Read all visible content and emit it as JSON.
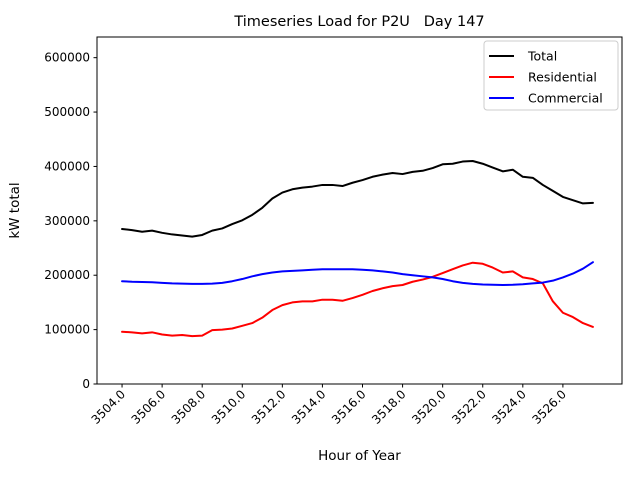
{
  "window": {
    "background_color": "#ffffff"
  },
  "chart_data": {
    "type": "line",
    "title": "Timeseries Load for P2U   Day 147",
    "xlabel": "Hour of Year",
    "ylabel": "kW total",
    "xlim": [
      3502.75,
      3528.95
    ],
    "ylim": [
      0,
      638000
    ],
    "grid": false,
    "legend_position": "upper right",
    "legend_border_color": "#cccccc",
    "axis_color": "#000000",
    "xticks": [
      3504,
      3506,
      3508,
      3510,
      3512,
      3514,
      3516,
      3518,
      3520,
      3522,
      3524,
      3526
    ],
    "xtick_labels": [
      "3504.0",
      "3506.0",
      "3508.0",
      "3510.0",
      "3512.0",
      "3514.0",
      "3516.0",
      "3518.0",
      "3520.0",
      "3522.0",
      "3524.0",
      "3526.0"
    ],
    "xtick_rotation_deg": 45,
    "yticks": [
      0,
      100000,
      200000,
      300000,
      400000,
      500000,
      600000
    ],
    "ytick_labels": [
      "0",
      "100000",
      "200000",
      "300000",
      "400000",
      "500000",
      "600000"
    ],
    "x": [
      3504.0,
      3504.5,
      3505.0,
      3505.5,
      3506.0,
      3506.5,
      3507.0,
      3507.5,
      3508.0,
      3508.5,
      3509.0,
      3509.5,
      3510.0,
      3510.5,
      3511.0,
      3511.5,
      3512.0,
      3512.5,
      3513.0,
      3513.5,
      3514.0,
      3514.5,
      3515.0,
      3515.5,
      3516.0,
      3516.5,
      3517.0,
      3517.5,
      3518.0,
      3518.5,
      3519.0,
      3519.5,
      3520.0,
      3520.5,
      3521.0,
      3521.5,
      3522.0,
      3522.5,
      3523.0,
      3523.5,
      3524.0,
      3524.5,
      3525.0,
      3525.5,
      3526.0,
      3526.5,
      3527.0,
      3527.5
    ],
    "series": [
      {
        "name": "Total",
        "color": "#000000",
        "values": [
          285000,
          283000,
          280000,
          282000,
          278000,
          275000,
          273000,
          271000,
          274000,
          282000,
          286000,
          294000,
          301000,
          311000,
          324000,
          341000,
          352000,
          358000,
          361000,
          363000,
          366000,
          366000,
          364000,
          370000,
          375000,
          381000,
          385000,
          388000,
          386000,
          390000,
          392000,
          397000,
          404000,
          405000,
          409000,
          410000,
          405000,
          398000,
          391000,
          394000,
          381000,
          379000,
          366000,
          355000,
          344000,
          338000,
          332000,
          333000
        ]
      },
      {
        "name": "Residential",
        "color": "#ff0000",
        "values": [
          96000,
          95000,
          93000,
          95000,
          91000,
          89000,
          90000,
          88000,
          89000,
          99000,
          100000,
          102000,
          107000,
          112000,
          122000,
          136000,
          145000,
          150000,
          152000,
          152000,
          155000,
          155000,
          153000,
          158000,
          164000,
          171000,
          176000,
          180000,
          182000,
          188000,
          192000,
          197000,
          204000,
          211000,
          218000,
          223000,
          221000,
          214000,
          205000,
          207000,
          196000,
          193000,
          185000,
          152000,
          131000,
          123000,
          112000,
          105000
        ]
      },
      {
        "name": "Commercial",
        "color": "#0000ff",
        "values": [
          189000,
          188000,
          187500,
          187000,
          186000,
          185000,
          184500,
          184000,
          184000,
          184500,
          186000,
          189000,
          193000,
          198000,
          202000,
          205000,
          207000,
          208000,
          209000,
          210000,
          211000,
          211000,
          211000,
          211000,
          210000,
          209000,
          207000,
          205000,
          202000,
          200000,
          198000,
          196000,
          193000,
          189000,
          186000,
          184000,
          183000,
          182500,
          182000,
          182500,
          183500,
          185000,
          186500,
          190000,
          196000,
          203000,
          212000,
          224000
        ]
      }
    ]
  }
}
